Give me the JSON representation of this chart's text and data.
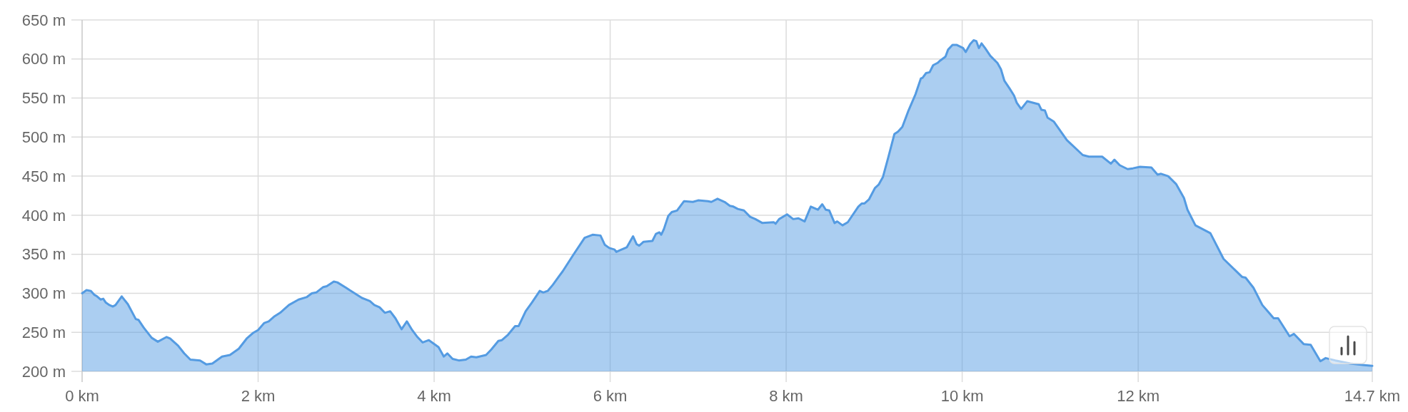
{
  "chart_data": {
    "type": "area",
    "x": [
      0,
      0.05,
      0.1,
      0.14,
      0.17,
      0.21,
      0.24,
      0.27,
      0.31,
      0.35,
      0.38,
      0.45,
      0.52,
      0.61,
      0.64,
      0.7,
      0.79,
      0.86,
      0.96,
      1,
      1.09,
      1.16,
      1.23,
      1.34,
      1.41,
      1.48,
      1.59,
      1.68,
      1.78,
      1.87,
      1.94,
      2,
      2.07,
      2.12,
      2.18,
      2.25,
      2.35,
      2.46,
      2.55,
      2.61,
      2.66,
      2.74,
      2.78,
      2.86,
      2.9,
      3,
      3.04,
      3.18,
      3.27,
      3.32,
      3.38,
      3.44,
      3.5,
      3.56,
      3.63,
      3.69,
      3.75,
      3.81,
      3.87,
      3.94,
      4.05,
      4.11,
      4.15,
      4.21,
      4.28,
      4.36,
      4.42,
      4.48,
      4.59,
      4.65,
      4.73,
      4.77,
      4.84,
      4.92,
      4.96,
      5.04,
      5.11,
      5.2,
      5.24,
      5.29,
      5.35,
      5.42,
      5.46,
      5.58,
      5.71,
      5.8,
      5.89,
      5.94,
      5.99,
      6.05,
      6.07,
      6.11,
      6.19,
      6.26,
      6.3,
      6.33,
      6.38,
      6.48,
      6.52,
      6.56,
      6.58,
      6.61,
      6.66,
      6.7,
      6.76,
      6.84,
      6.94,
      7,
      7.11,
      7.15,
      7.22,
      7.3,
      7.36,
      7.4,
      7.45,
      7.52,
      7.59,
      7.65,
      7.73,
      7.86,
      7.88,
      7.92,
      8.01,
      8.08,
      8.14,
      8.21,
      8.28,
      8.36,
      8.41,
      8.45,
      8.49,
      8.55,
      8.58,
      8.64,
      8.7,
      8.82,
      8.86,
      8.89,
      8.94,
      9.01,
      9.05,
      9.1,
      9.16,
      9.23,
      9.27,
      9.32,
      9.39,
      9.47,
      9.53,
      9.55,
      9.59,
      9.63,
      9.67,
      9.72,
      9.75,
      9.81,
      9.84,
      9.89,
      9.94,
      10.01,
      10.04,
      10.09,
      10.13,
      10.16,
      10.19,
      10.22,
      10.26,
      10.32,
      10.4,
      10.44,
      10.48,
      10.54,
      10.59,
      10.62,
      10.67,
      10.74,
      10.87,
      10.9,
      10.94,
      10.97,
      11.04,
      11.19,
      11.37,
      11.44,
      11.59,
      11.69,
      11.73,
      11.79,
      11.88,
      11.94,
      12.02,
      12.15,
      12.22,
      12.26,
      12.34,
      12.43,
      12.52,
      12.56,
      12.65,
      12.82,
      12.97,
      13.18,
      13.22,
      13.31,
      13.41,
      13.54,
      13.59,
      13.72,
      13.77,
      13.88,
      13.96,
      14.07,
      14.13,
      14.24,
      14.41,
      14.57,
      14.66
    ],
    "values": [
      300,
      304,
      303,
      298,
      296,
      292,
      293,
      288,
      285,
      283,
      285,
      296,
      286,
      267,
      266,
      256,
      243,
      238,
      244,
      242,
      233,
      223,
      215,
      214,
      209,
      210,
      219,
      221,
      229,
      242,
      249,
      253,
      262,
      264,
      270,
      275,
      285,
      292,
      295,
      300,
      301,
      308,
      309,
      315,
      314,
      307,
      304,
      294,
      290,
      285,
      282,
      275,
      277,
      268,
      254,
      264,
      253,
      244,
      237,
      240,
      231,
      219,
      223,
      216,
      214,
      215,
      219,
      218,
      221,
      228,
      239,
      240,
      247,
      258,
      258,
      277,
      288,
      303,
      301,
      303,
      311,
      322,
      328,
      349,
      371,
      375,
      374,
      362,
      358,
      356,
      353,
      355,
      359,
      373,
      363,
      361,
      366,
      367,
      376,
      378,
      375,
      382,
      399,
      404,
      406,
      418,
      417,
      419,
      418,
      417,
      421,
      417,
      412,
      411,
      408,
      406,
      398,
      395,
      390,
      391,
      389,
      395,
      401,
      395,
      396,
      392,
      411,
      407,
      414,
      407,
      406,
      390,
      392,
      387,
      391,
      411,
      415,
      415,
      420,
      435,
      439,
      449,
      474,
      504,
      507,
      513,
      534,
      555,
      575,
      576,
      582,
      583,
      592,
      595,
      598,
      603,
      612,
      618,
      618,
      614,
      609,
      619,
      624,
      623,
      614,
      620,
      614,
      604,
      595,
      587,
      572,
      562,
      553,
      544,
      536,
      546,
      542,
      535,
      534,
      525,
      520,
      496,
      477,
      475,
      475,
      466,
      471,
      464,
      459,
      460,
      462,
      461,
      452,
      453,
      450,
      440,
      422,
      407,
      387,
      377,
      344,
      321,
      320,
      307,
      285,
      268,
      268,
      245,
      248,
      235,
      234,
      213,
      217,
      214,
      210,
      208,
      207
    ],
    "color": "#549be2",
    "xlim": [
      0,
      14.66
    ],
    "xticks": [
      {
        "value": 0,
        "label": "0 km"
      },
      {
        "value": 2,
        "label": "2 km"
      },
      {
        "value": 4,
        "label": "4 km"
      },
      {
        "value": 6,
        "label": "6 km"
      },
      {
        "value": 8,
        "label": "8 km"
      },
      {
        "value": 10,
        "label": "10 km"
      },
      {
        "value": 12,
        "label": "12 km"
      },
      {
        "value": 14.66,
        "label": "14.7 km"
      }
    ],
    "ylim": [
      200,
      650
    ],
    "yticks": [
      {
        "value": 200,
        "label": "200 m"
      },
      {
        "value": 250,
        "label": "250 m"
      },
      {
        "value": 300,
        "label": "300 m"
      },
      {
        "value": 350,
        "label": "350 m"
      },
      {
        "value": 400,
        "label": "400 m"
      },
      {
        "value": 450,
        "label": "450 m"
      },
      {
        "value": 500,
        "label": "500 m"
      },
      {
        "value": 550,
        "label": "550 m"
      },
      {
        "value": 600,
        "label": "600 m"
      },
      {
        "value": 650,
        "label": "650 m"
      }
    ],
    "grid": true
  }
}
